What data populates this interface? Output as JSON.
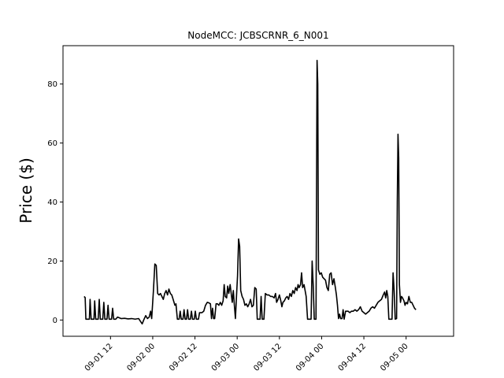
{
  "chart_data": {
    "type": "line",
    "title": "NodeMCC: JCBSCRNR_6_N001",
    "xlabel": "",
    "ylabel": "Price ($)",
    "ylim": [
      -5.5,
      93
    ],
    "xlim_hours": [
      -1.5,
      109.5
    ],
    "grid": false,
    "legend": "none",
    "line_color": "#000000",
    "x_ticks": [
      {
        "hours": 12,
        "label": "09-01 12"
      },
      {
        "hours": 24,
        "label": "09-02 00"
      },
      {
        "hours": 36,
        "label": "09-02 12"
      },
      {
        "hours": 48,
        "label": "09-03 00"
      },
      {
        "hours": 60,
        "label": "09-03 12"
      },
      {
        "hours": 72,
        "label": "09-04 00"
      },
      {
        "hours": 84,
        "label": "09-04 12"
      },
      {
        "hours": 96,
        "label": "09-05 00"
      }
    ],
    "y_ticks": [
      0,
      20,
      40,
      60,
      80
    ],
    "x_unit_note": "hours after 2023-09-01 00:00 (date labels shown as MM-DD HH)",
    "series": [
      {
        "name": "",
        "points": [
          [
            4.5,
            8.0
          ],
          [
            4.8,
            7.6
          ],
          [
            5.0,
            0.3
          ],
          [
            6.0,
            0.3
          ],
          [
            6.2,
            7.0
          ],
          [
            6.5,
            0.3
          ],
          [
            7.3,
            0.3
          ],
          [
            7.5,
            6.5
          ],
          [
            7.8,
            0.3
          ],
          [
            8.5,
            0.3
          ],
          [
            8.8,
            7.0
          ],
          [
            9.1,
            0.3
          ],
          [
            9.8,
            0.3
          ],
          [
            10.1,
            6.0
          ],
          [
            10.4,
            0.3
          ],
          [
            11.0,
            0.3
          ],
          [
            11.3,
            5.0
          ],
          [
            11.6,
            0.3
          ],
          [
            12.3,
            0.3
          ],
          [
            12.6,
            4.0
          ],
          [
            12.9,
            0.3
          ],
          [
            13.5,
            0.3
          ],
          [
            14.0,
            1.0
          ],
          [
            15.0,
            0.5
          ],
          [
            16.0,
            0.6
          ],
          [
            17.0,
            0.4
          ],
          [
            18.0,
            0.5
          ],
          [
            19.0,
            0.3
          ],
          [
            20.0,
            0.5
          ],
          [
            21.0,
            -1.3
          ],
          [
            21.5,
            0.2
          ],
          [
            22.0,
            1.5
          ],
          [
            22.5,
            0.5
          ],
          [
            23.0,
            1.0
          ],
          [
            23.4,
            3.0
          ],
          [
            23.7,
            0.5
          ],
          [
            24.2,
            10.0
          ],
          [
            24.6,
            19.0
          ],
          [
            25.0,
            18.5
          ],
          [
            25.4,
            9.0
          ],
          [
            25.8,
            8.5
          ],
          [
            26.2,
            9.0
          ],
          [
            26.6,
            8.0
          ],
          [
            27.0,
            7.0
          ],
          [
            27.4,
            9.0
          ],
          [
            27.8,
            10.0
          ],
          [
            28.2,
            8.5
          ],
          [
            28.6,
            10.5
          ],
          [
            29.0,
            9.0
          ],
          [
            29.4,
            8.5
          ],
          [
            29.8,
            7.0
          ],
          [
            30.3,
            5.0
          ],
          [
            30.6,
            5.5
          ],
          [
            31.0,
            0.3
          ],
          [
            31.5,
            0.3
          ],
          [
            31.8,
            3.0
          ],
          [
            32.1,
            0.3
          ],
          [
            32.6,
            0.3
          ],
          [
            32.9,
            3.5
          ],
          [
            33.2,
            0.3
          ],
          [
            33.6,
            0.3
          ],
          [
            33.9,
            3.5
          ],
          [
            34.2,
            0.3
          ],
          [
            34.7,
            0.3
          ],
          [
            35.0,
            3.0
          ],
          [
            35.3,
            0.3
          ],
          [
            35.8,
            0.3
          ],
          [
            36.1,
            3.0
          ],
          [
            36.4,
            0.3
          ],
          [
            37.0,
            0.3
          ],
          [
            37.3,
            2.5
          ],
          [
            38.0,
            2.5
          ],
          [
            38.5,
            3.0
          ],
          [
            39.0,
            5.0
          ],
          [
            39.5,
            6.0
          ],
          [
            40.0,
            5.8
          ],
          [
            40.4,
            5.5
          ],
          [
            40.7,
            0.5
          ],
          [
            41.0,
            4.0
          ],
          [
            41.3,
            0.5
          ],
          [
            41.6,
            0.5
          ],
          [
            42.0,
            5.5
          ],
          [
            42.4,
            5.5
          ],
          [
            42.8,
            5.0
          ],
          [
            43.2,
            6.0
          ],
          [
            43.6,
            5.0
          ],
          [
            44.0,
            6.5
          ],
          [
            44.3,
            12.0
          ],
          [
            44.6,
            8.0
          ],
          [
            45.0,
            7.5
          ],
          [
            45.3,
            11.5
          ],
          [
            45.6,
            9.0
          ],
          [
            46.0,
            12.0
          ],
          [
            46.3,
            9.0
          ],
          [
            46.6,
            6.0
          ],
          [
            46.9,
            10.0
          ],
          [
            47.2,
            5.0
          ],
          [
            47.5,
            0.5
          ],
          [
            47.8,
            8.0
          ],
          [
            48.1,
            15.0
          ],
          [
            48.4,
            27.5
          ],
          [
            48.7,
            25.0
          ],
          [
            49.0,
            10.0
          ],
          [
            49.4,
            8.0
          ],
          [
            49.8,
            7.0
          ],
          [
            50.2,
            5.0
          ],
          [
            50.6,
            5.5
          ],
          [
            51.0,
            4.5
          ],
          [
            51.4,
            5.5
          ],
          [
            51.8,
            7.0
          ],
          [
            52.2,
            4.5
          ],
          [
            52.6,
            5.0
          ],
          [
            53.0,
            11.0
          ],
          [
            53.4,
            10.5
          ],
          [
            53.7,
            0.3
          ],
          [
            54.5,
            0.3
          ],
          [
            54.8,
            8.0
          ],
          [
            55.1,
            0.3
          ],
          [
            55.6,
            0.3
          ],
          [
            56.0,
            9.0
          ],
          [
            56.5,
            8.5
          ],
          [
            57.0,
            8.5
          ],
          [
            57.5,
            8.0
          ],
          [
            58.0,
            8.0
          ],
          [
            58.5,
            7.5
          ],
          [
            58.9,
            9.0
          ],
          [
            59.2,
            6.0
          ],
          [
            59.6,
            7.0
          ],
          [
            60.0,
            8.5
          ],
          [
            60.4,
            6.5
          ],
          [
            60.7,
            4.5
          ],
          [
            61.0,
            6.0
          ],
          [
            61.4,
            6.5
          ],
          [
            61.8,
            7.5
          ],
          [
            62.2,
            8.0
          ],
          [
            62.6,
            7.0
          ],
          [
            63.0,
            9.0
          ],
          [
            63.4,
            8.0
          ],
          [
            63.8,
            10.0
          ],
          [
            64.2,
            9.0
          ],
          [
            64.6,
            11.0
          ],
          [
            65.0,
            10.0
          ],
          [
            65.3,
            12.0
          ],
          [
            65.6,
            11.0
          ],
          [
            66.0,
            12.0
          ],
          [
            66.3,
            16.0
          ],
          [
            66.6,
            11.0
          ],
          [
            67.0,
            12.0
          ],
          [
            67.3,
            10.0
          ],
          [
            67.6,
            8.0
          ],
          [
            68.0,
            0.3
          ],
          [
            69.0,
            0.3
          ],
          [
            69.3,
            20.0
          ],
          [
            69.6,
            12.0
          ],
          [
            69.9,
            0.3
          ],
          [
            70.4,
            0.3
          ],
          [
            70.7,
            88.0
          ],
          [
            70.9,
            80.0
          ],
          [
            71.1,
            17.0
          ],
          [
            71.5,
            15.5
          ],
          [
            71.9,
            16.0
          ],
          [
            72.3,
            14.5
          ],
          [
            72.7,
            14.0
          ],
          [
            73.1,
            13.5
          ],
          [
            73.5,
            11.0
          ],
          [
            73.9,
            10.0
          ],
          [
            74.3,
            15.5
          ],
          [
            74.7,
            16.0
          ],
          [
            75.1,
            12.0
          ],
          [
            75.5,
            14.0
          ],
          [
            75.9,
            11.0
          ],
          [
            76.2,
            8.5
          ],
          [
            76.5,
            5.0
          ],
          [
            76.8,
            0.5
          ],
          [
            77.1,
            2.0
          ],
          [
            77.4,
            0.5
          ],
          [
            77.8,
            0.5
          ],
          [
            78.1,
            3.5
          ],
          [
            78.4,
            0.3
          ],
          [
            78.8,
            3.0
          ],
          [
            79.5,
            3.0
          ],
          [
            80.0,
            2.5
          ],
          [
            80.5,
            3.0
          ],
          [
            81.0,
            3.0
          ],
          [
            81.5,
            3.5
          ],
          [
            82.0,
            3.0
          ],
          [
            82.5,
            3.5
          ],
          [
            83.0,
            4.5
          ],
          [
            83.5,
            3.0
          ],
          [
            84.0,
            2.5
          ],
          [
            84.5,
            2.0
          ],
          [
            85.0,
            2.5
          ],
          [
            85.5,
            3.0
          ],
          [
            86.0,
            4.0
          ],
          [
            86.5,
            4.5
          ],
          [
            87.0,
            4.0
          ],
          [
            87.5,
            5.0
          ],
          [
            88.0,
            6.0
          ],
          [
            88.5,
            6.5
          ],
          [
            89.0,
            7.0
          ],
          [
            89.5,
            8.5
          ],
          [
            89.9,
            9.5
          ],
          [
            90.2,
            7.5
          ],
          [
            90.5,
            10.0
          ],
          [
            90.8,
            8.0
          ],
          [
            91.1,
            0.3
          ],
          [
            92.0,
            0.3
          ],
          [
            92.3,
            16.0
          ],
          [
            92.6,
            10.0
          ],
          [
            92.9,
            0.3
          ],
          [
            93.3,
            0.5
          ],
          [
            93.5,
            40.0
          ],
          [
            93.7,
            63.0
          ],
          [
            93.9,
            55.0
          ],
          [
            94.1,
            12.0
          ],
          [
            94.4,
            6.0
          ],
          [
            94.7,
            8.0
          ],
          [
            95.0,
            7.5
          ],
          [
            95.4,
            6.5
          ],
          [
            95.7,
            5.0
          ],
          [
            96.0,
            6.0
          ],
          [
            96.4,
            5.5
          ],
          [
            96.8,
            8.0
          ],
          [
            97.2,
            6.0
          ],
          [
            97.6,
            6.0
          ],
          [
            98.0,
            5.0
          ],
          [
            98.4,
            4.0
          ],
          [
            98.8,
            3.5
          ]
        ]
      }
    ]
  }
}
